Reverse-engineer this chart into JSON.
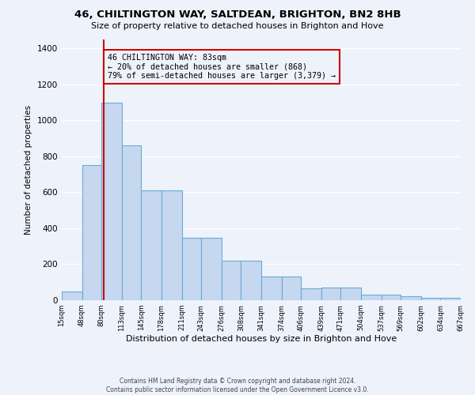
{
  "title1": "46, CHILTINGTON WAY, SALTDEAN, BRIGHTON, BN2 8HB",
  "title2": "Size of property relative to detached houses in Brighton and Hove",
  "xlabel": "Distribution of detached houses by size in Brighton and Hove",
  "ylabel": "Number of detached properties",
  "footer1": "Contains HM Land Registry data © Crown copyright and database right 2024.",
  "footer2": "Contains public sector information licensed under the Open Government Licence v3.0.",
  "annotation_line1": "46 CHILTINGTON WAY: 83sqm",
  "annotation_line2": "← 20% of detached houses are smaller (868)",
  "annotation_line3": "79% of semi-detached houses are larger (3,379) →",
  "bar_heights": [
    50,
    750,
    1100,
    860,
    610,
    610,
    345,
    345,
    220,
    220,
    130,
    130,
    65,
    70,
    70,
    30,
    30,
    20,
    15,
    15
  ],
  "bin_edges": [
    15,
    48,
    80,
    113,
    145,
    178,
    211,
    243,
    276,
    308,
    341,
    374,
    406,
    439,
    471,
    504,
    537,
    569,
    602,
    634,
    667
  ],
  "tick_labels": [
    "15sqm",
    "48sqm",
    "80sqm",
    "113sqm",
    "145sqm",
    "178sqm",
    "211sqm",
    "243sqm",
    "276sqm",
    "308sqm",
    "341sqm",
    "374sqm",
    "406sqm",
    "439sqm",
    "471sqm",
    "504sqm",
    "537sqm",
    "569sqm",
    "602sqm",
    "634sqm",
    "667sqm"
  ],
  "bar_color": "#c5d8f0",
  "bar_edge_color": "#6aaad4",
  "vline_x": 83,
  "vline_color": "#cc0000",
  "annotation_box_color": "#cc0000",
  "bg_color": "#eef2fb",
  "grid_color": "#ffffff",
  "ylim": [
    0,
    1450
  ],
  "yticks": [
    0,
    200,
    400,
    600,
    800,
    1000,
    1200,
    1400
  ]
}
